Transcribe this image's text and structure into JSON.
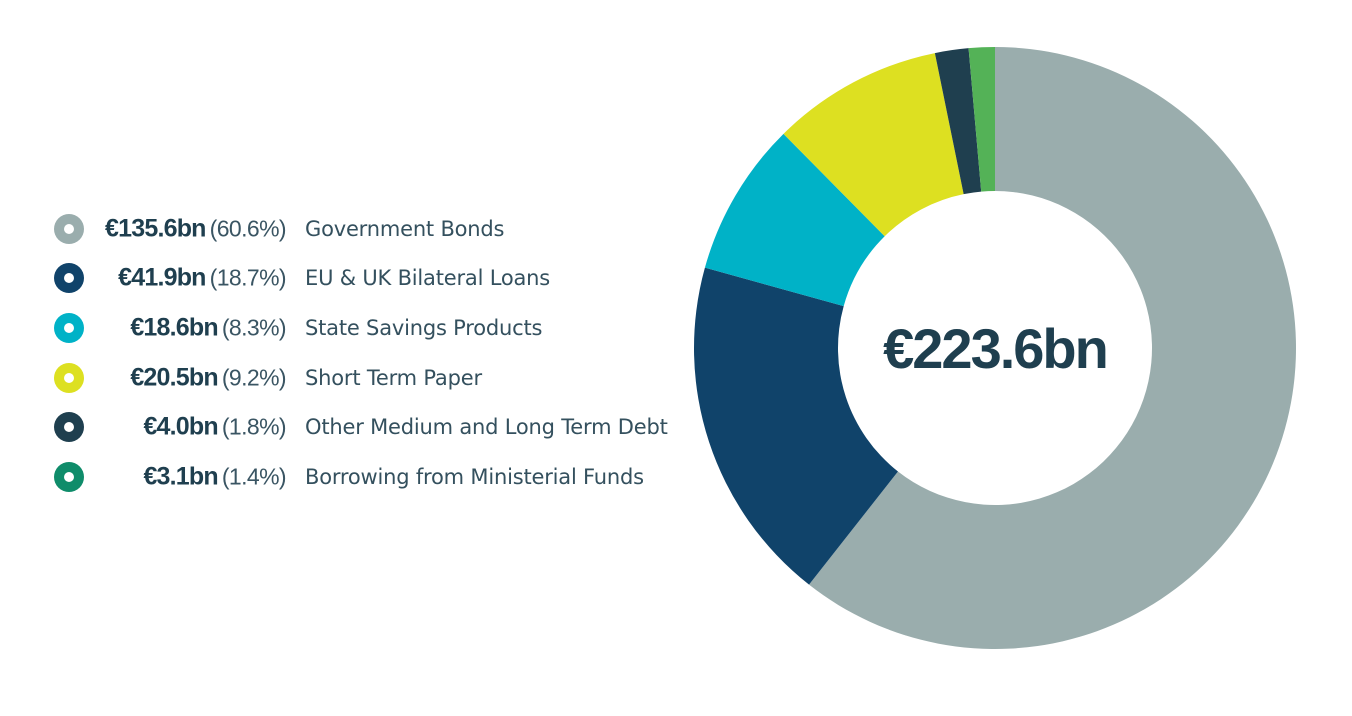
{
  "chart_data": {
    "type": "pie",
    "variant": "donut",
    "total_label": "€223.6bn",
    "slices": [
      {
        "amount": "€135.6bn",
        "percent_label": "(60.6%)",
        "label": "Government Bonds",
        "value": 135.6,
        "percent": 60.6,
        "color": "#9aadad"
      },
      {
        "amount": "€41.9bn",
        "percent_label": "(18.7%)",
        "label": "EU & UK Bilateral Loans",
        "value": 41.9,
        "percent": 18.7,
        "color": "#10436a"
      },
      {
        "amount": "€18.6bn",
        "percent_label": "(8.3%)",
        "label": "State Savings Products",
        "value": 18.6,
        "percent": 8.3,
        "color": "#00b2c7"
      },
      {
        "amount": "€20.5bn",
        "percent_label": "(9.2%)",
        "label": "Short Term Paper",
        "value": 20.5,
        "percent": 9.2,
        "color": "#dde021"
      },
      {
        "amount": "€4.0bn",
        "percent_label": "(1.8%)",
        "label": "Other Medium and Long Term Debt",
        "value": 4.0,
        "percent": 1.8,
        "color": "#1f3f4f"
      },
      {
        "amount": "€3.1bn",
        "percent_label": "(1.4%)",
        "label": "Borrowing from Ministerial Funds",
        "value": 3.1,
        "percent": 1.4,
        "color": "#54b257",
        "legend_color": "#0f8c6a"
      }
    ],
    "legend_position": "left"
  }
}
